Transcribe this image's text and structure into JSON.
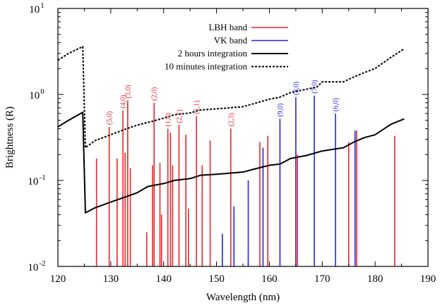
{
  "chart_data": {
    "type": "line",
    "xlabel": "Wavelength (nm)",
    "ylabel": "Brightness (R)",
    "xlim": [
      120,
      190
    ],
    "ylim": [
      0.01,
      10
    ],
    "yscale": "log",
    "grid": false,
    "legend_position": "top-center",
    "x_ticks": [
      {
        "value": 120,
        "label": "120"
      },
      {
        "value": 130,
        "label": "130"
      },
      {
        "value": 140,
        "label": "140"
      },
      {
        "value": 150,
        "label": "150"
      },
      {
        "value": 160,
        "label": "160"
      },
      {
        "value": 170,
        "label": "170"
      },
      {
        "value": 180,
        "label": "180"
      },
      {
        "value": 190,
        "label": "190"
      }
    ],
    "y_ticks": [
      {
        "value": 0.01,
        "base": "10",
        "exp": "-2"
      },
      {
        "value": 0.1,
        "base": "10",
        "exp": "-1"
      },
      {
        "value": 1,
        "base": "10",
        "exp": "0"
      },
      {
        "value": 10,
        "base": "10",
        "exp": "1"
      }
    ],
    "series": [
      {
        "name": "LBH band",
        "kind": "stem",
        "color": "#e8262b",
        "points": [
          {
            "x": 127.3,
            "y": 0.18
          },
          {
            "x": 129.7,
            "y": 0.42
          },
          {
            "x": 131.2,
            "y": 0.18
          },
          {
            "x": 132.3,
            "y": 0.65
          },
          {
            "x": 132.7,
            "y": 0.21
          },
          {
            "x": 133.2,
            "y": 0.85
          },
          {
            "x": 133.7,
            "y": 0.14
          },
          {
            "x": 136.8,
            "y": 0.025
          },
          {
            "x": 137.9,
            "y": 0.15
          },
          {
            "x": 138.2,
            "y": 0.8
          },
          {
            "x": 139.3,
            "y": 0.16
          },
          {
            "x": 139.6,
            "y": 0.04
          },
          {
            "x": 140.8,
            "y": 0.4
          },
          {
            "x": 141.3,
            "y": 0.36
          },
          {
            "x": 141.7,
            "y": 0.15
          },
          {
            "x": 142.9,
            "y": 0.44
          },
          {
            "x": 144.2,
            "y": 0.34
          },
          {
            "x": 144.7,
            "y": 0.047
          },
          {
            "x": 146.2,
            "y": 0.56
          },
          {
            "x": 147.3,
            "y": 0.15
          },
          {
            "x": 148.8,
            "y": 0.29
          },
          {
            "x": 152.7,
            "y": 0.4
          },
          {
            "x": 158.2,
            "y": 0.28
          },
          {
            "x": 159.7,
            "y": 0.33
          },
          {
            "x": 165.3,
            "y": 0.2
          },
          {
            "x": 175.0,
            "y": 0.28
          },
          {
            "x": 176.5,
            "y": 0.38
          },
          {
            "x": 183.7,
            "y": 0.33
          }
        ]
      },
      {
        "name": "VK band",
        "kind": "stem",
        "color": "#2424e0",
        "points": [
          {
            "x": 151.1,
            "y": 0.024
          },
          {
            "x": 153.3,
            "y": 0.05
          },
          {
            "x": 156.0,
            "y": 0.1
          },
          {
            "x": 158.8,
            "y": 0.24
          },
          {
            "x": 162.0,
            "y": 0.52
          },
          {
            "x": 165.0,
            "y": 0.93
          },
          {
            "x": 168.5,
            "y": 0.97
          },
          {
            "x": 172.5,
            "y": 0.6
          },
          {
            "x": 176.2,
            "y": 0.38
          }
        ]
      },
      {
        "name": "2 hours integration",
        "kind": "line",
        "style": "solid",
        "color": "#000000",
        "points": [
          {
            "x": 120,
            "y": 0.42
          },
          {
            "x": 122,
            "y": 0.5
          },
          {
            "x": 124.7,
            "y": 0.62
          },
          {
            "x": 125.2,
            "y": 0.042
          },
          {
            "x": 127,
            "y": 0.048
          },
          {
            "x": 130,
            "y": 0.056
          },
          {
            "x": 133,
            "y": 0.065
          },
          {
            "x": 135,
            "y": 0.072
          },
          {
            "x": 137,
            "y": 0.085
          },
          {
            "x": 140,
            "y": 0.092
          },
          {
            "x": 142,
            "y": 0.1
          },
          {
            "x": 145,
            "y": 0.105
          },
          {
            "x": 147,
            "y": 0.115
          },
          {
            "x": 150,
            "y": 0.118
          },
          {
            "x": 155,
            "y": 0.125
          },
          {
            "x": 157,
            "y": 0.135
          },
          {
            "x": 160,
            "y": 0.15
          },
          {
            "x": 162,
            "y": 0.155
          },
          {
            "x": 164,
            "y": 0.18
          },
          {
            "x": 167,
            "y": 0.195
          },
          {
            "x": 170,
            "y": 0.22
          },
          {
            "x": 172,
            "y": 0.23
          },
          {
            "x": 174,
            "y": 0.24
          },
          {
            "x": 176,
            "y": 0.28
          },
          {
            "x": 178,
            "y": 0.315
          },
          {
            "x": 180,
            "y": 0.34
          },
          {
            "x": 183,
            "y": 0.45
          },
          {
            "x": 185.5,
            "y": 0.52
          }
        ]
      },
      {
        "name": "10 minutes integration",
        "kind": "line",
        "style": "dotted",
        "color": "#000000",
        "points": [
          {
            "x": 120,
            "y": 2.5
          },
          {
            "x": 122,
            "y": 3.0
          },
          {
            "x": 124.7,
            "y": 3.6
          },
          {
            "x": 125.2,
            "y": 0.24
          },
          {
            "x": 127,
            "y": 0.29
          },
          {
            "x": 130,
            "y": 0.34
          },
          {
            "x": 133,
            "y": 0.4
          },
          {
            "x": 135,
            "y": 0.44
          },
          {
            "x": 138,
            "y": 0.49
          },
          {
            "x": 140,
            "y": 0.53
          },
          {
            "x": 142,
            "y": 0.58
          },
          {
            "x": 145,
            "y": 0.61
          },
          {
            "x": 147,
            "y": 0.66
          },
          {
            "x": 150,
            "y": 0.68
          },
          {
            "x": 155,
            "y": 0.72
          },
          {
            "x": 157,
            "y": 0.78
          },
          {
            "x": 160,
            "y": 0.88
          },
          {
            "x": 162,
            "y": 0.93
          },
          {
            "x": 164,
            "y": 1.05
          },
          {
            "x": 167,
            "y": 1.15
          },
          {
            "x": 169,
            "y": 1.22
          },
          {
            "x": 170,
            "y": 1.4
          },
          {
            "x": 174,
            "y": 1.4
          },
          {
            "x": 176,
            "y": 1.6
          },
          {
            "x": 178,
            "y": 1.8
          },
          {
            "x": 180,
            "y": 2.0
          },
          {
            "x": 183,
            "y": 2.7
          },
          {
            "x": 185.5,
            "y": 3.4
          }
        ]
      }
    ],
    "band_labels": [
      {
        "text": "(5,0)",
        "x": 129.7,
        "y": 0.42,
        "color": "#e8262b"
      },
      {
        "text": "(4,0)",
        "x": 132.3,
        "y": 0.65,
        "color": "#e8262b"
      },
      {
        "text": "(3,0)",
        "x": 133.2,
        "y": 0.85,
        "color": "#e8262b"
      },
      {
        "text": "(2,0)",
        "x": 138.2,
        "y": 0.8,
        "color": "#e8262b"
      },
      {
        "text": "(1,0)",
        "x": 140.8,
        "y": 0.4,
        "color": "#e8262b"
      },
      {
        "text": "(2,1)",
        "x": 142.9,
        "y": 0.44,
        "color": "#e8262b"
      },
      {
        "text": "(1,1)",
        "x": 146.2,
        "y": 0.56,
        "color": "#e8262b"
      },
      {
        "text": "(2,3)",
        "x": 152.7,
        "y": 0.4,
        "color": "#e8262b"
      },
      {
        "text": "(9,0)",
        "x": 162.0,
        "y": 0.52,
        "color": "#2424e0"
      },
      {
        "text": "(8,0)",
        "x": 165.0,
        "y": 0.93,
        "color": "#2424e0"
      },
      {
        "text": "(7,0)",
        "x": 168.5,
        "y": 0.97,
        "color": "#2424e0"
      },
      {
        "text": "(6,0)",
        "x": 172.5,
        "y": 0.6,
        "color": "#2424e0"
      }
    ]
  }
}
